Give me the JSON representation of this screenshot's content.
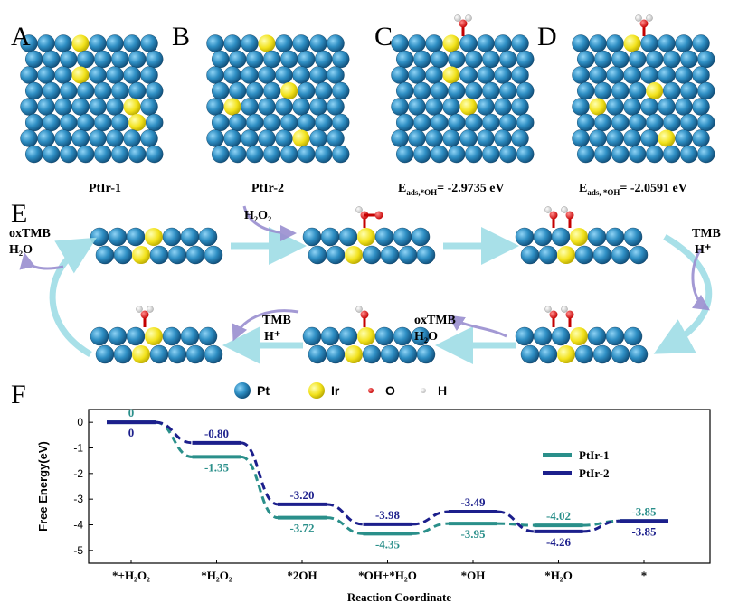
{
  "panels": {
    "letters": [
      "A",
      "B",
      "C",
      "D",
      "E",
      "F"
    ],
    "captions": [
      "PtIr-1",
      "PtIr-2"
    ],
    "energies": [
      {
        "symbol": "E",
        "subscript": "ads,*OH",
        "text": "= -2.9735 eV"
      },
      {
        "symbol": "E",
        "subscript": "ads, *OH",
        "text": "= -2.0591 eV"
      }
    ],
    "annotations": [
      "H₂O₂",
      "oxTMB",
      "H₂O",
      "TMB",
      "H⁺",
      "TMB",
      "H⁺",
      "oxTMB",
      "H₂O"
    ],
    "atom_legend": [
      "Pt",
      "Ir",
      "O",
      "H"
    ]
  },
  "chart_data": {
    "type": "energy-levels",
    "x_label": "Reaction Coordinate",
    "y_label": "Free Energy(eV)",
    "categories": [
      "*+H₂O₂",
      "*H₂O₂",
      "*2OH",
      "*OH+*H₂O",
      "*OH",
      "*H₂O",
      "*"
    ],
    "series": [
      {
        "name": "PtIr-1",
        "color": "#2a8f8a",
        "values": [
          0,
          -1.35,
          -3.72,
          -4.35,
          -3.95,
          -4.02,
          -3.85
        ],
        "value_labels": [
          "0",
          "-1.35",
          "-3.72",
          "-4.35",
          "-3.95",
          "-4.02",
          "-3.85"
        ]
      },
      {
        "name": "PtIr-2",
        "color": "#1c1f8c",
        "values": [
          0,
          -0.8,
          -3.2,
          -3.98,
          -3.49,
          -4.26,
          -3.85
        ],
        "value_labels": [
          "0",
          "-0.80",
          "-3.20",
          "-3.98",
          "-3.49",
          "-4.26",
          "-3.85"
        ]
      }
    ],
    "ylim": [
      -5.5,
      0.5
    ],
    "yticks": [
      0,
      -1,
      -2,
      -3,
      -4,
      -5
    ],
    "legend": "upper right"
  }
}
